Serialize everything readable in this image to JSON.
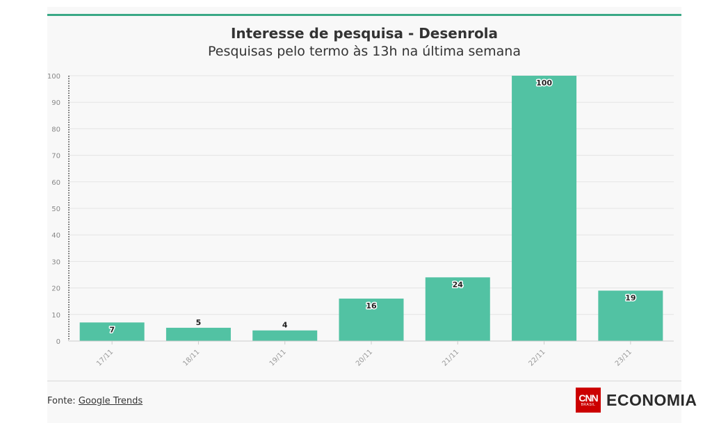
{
  "title": "Interesse de pesquisa - Desenrola",
  "subtitle": "Pesquisas pelo termo às 13h na última semana",
  "source_prefix": "Fonte: ",
  "source_link": "Google Trends",
  "logo": {
    "brand": "CNN",
    "brand_sub": "BRASIL",
    "section": "ECONOMIA"
  },
  "colors": {
    "bar": "#52c2a3",
    "accent_line": "#3aa886",
    "grid": "#e4e4e4"
  },
  "chart_data": {
    "type": "bar",
    "categories": [
      "17/11",
      "18/11",
      "19/11",
      "20/11",
      "21/11",
      "22/11",
      "23/11"
    ],
    "values": [
      7,
      5,
      4,
      16,
      24,
      100,
      19
    ],
    "ylim": [
      0,
      100
    ],
    "yticks": [
      0,
      10,
      20,
      30,
      40,
      50,
      60,
      70,
      80,
      90,
      100
    ],
    "grid": true,
    "legend": "none"
  }
}
